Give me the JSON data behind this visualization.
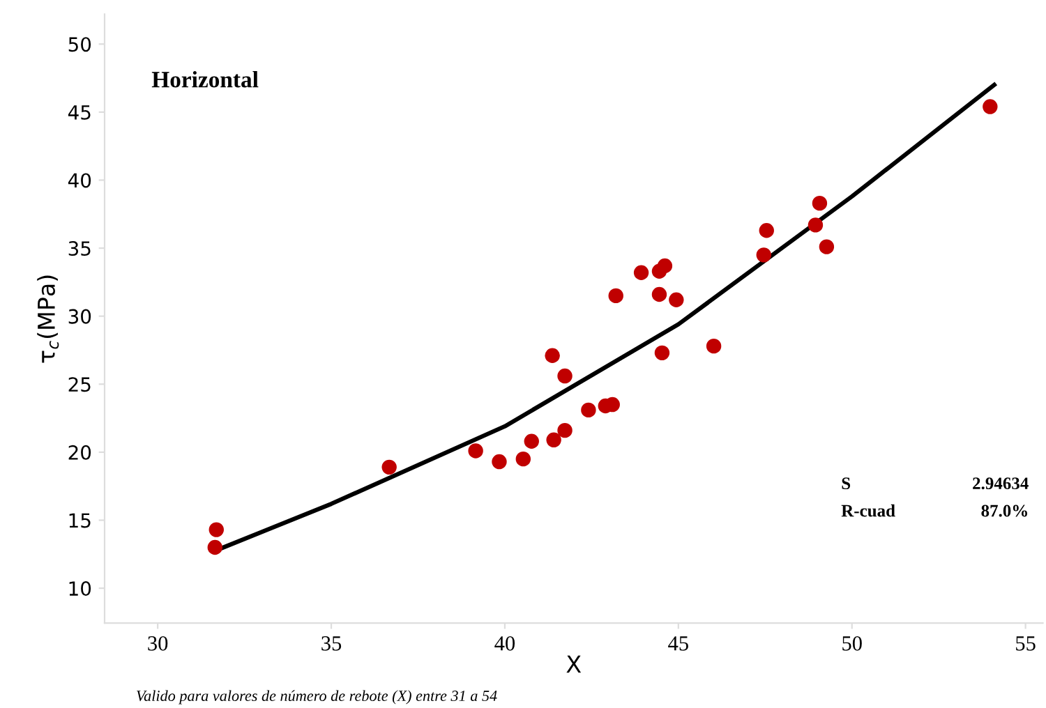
{
  "chart_data": {
    "type": "scatter",
    "title": "Horizontal",
    "xlabel": "X",
    "ylabel": "τ$_{c}$(MPa)",
    "xlim": [
      28.47,
      55.5
    ],
    "xticks": [
      30,
      35,
      40,
      45,
      50,
      55
    ],
    "ylim": [
      7.44,
      52.2
    ],
    "yticks": [
      10,
      15,
      20,
      25,
      30,
      35,
      40,
      45,
      50
    ],
    "grid": false,
    "legend": false,
    "series": [
      {
        "color": "#c00000",
        "marker": "circle",
        "x": [
          31.65,
          31.69,
          36.67,
          39.16,
          39.84,
          40.53,
          40.77,
          41.41,
          41.37,
          41.73,
          41.73,
          42.41,
          42.9,
          43.1,
          43.2,
          43.93,
          44.45,
          44.61,
          44.45,
          44.94,
          44.53,
          46.02,
          47.46,
          47.54,
          48.95,
          49.07,
          49.27,
          53.98
        ],
        "values": [
          13.0,
          14.3,
          18.9,
          20.1,
          19.3,
          19.5,
          20.8,
          20.9,
          27.1,
          25.6,
          21.6,
          23.1,
          23.4,
          23.5,
          31.5,
          33.2,
          33.3,
          33.7,
          31.6,
          31.2,
          27.3,
          27.8,
          34.5,
          36.3,
          36.7,
          38.3,
          35.1,
          45.4
        ]
      },
      {
        "type": "line",
        "color": "#000000",
        "marker": "none",
        "line_style": "solid",
        "x": [
          31.7,
          35,
          40,
          45,
          50,
          54.1
        ],
        "values": [
          12.8,
          16.2,
          21.9,
          29.4,
          38.8,
          47.0
        ]
      }
    ],
    "annotations": [
      "S",
      "2.94634",
      "R-cuad",
      "87.0%",
      "Valido para valores de número de rebote (X) entre 31 a 54"
    ]
  }
}
